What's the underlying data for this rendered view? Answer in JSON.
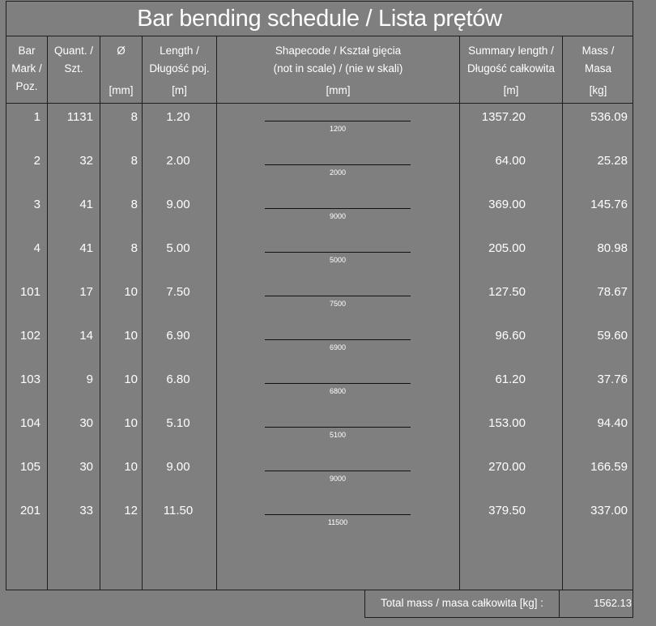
{
  "title": "Bar bending schedule / Lista prętów",
  "headers": {
    "mark": [
      "Bar",
      "Mark /",
      "Poz."
    ],
    "quant": [
      "Quant. /",
      "Szt."
    ],
    "dia": [
      "Ø"
    ],
    "length": [
      "Length /",
      "Długość poj."
    ],
    "shape": [
      "Shapecode / Kształ gięcia",
      "(not in scale) / (nie w skali)"
    ],
    "summary": [
      "Summary length /",
      "Długość całkowita"
    ],
    "mass": [
      "Mass /",
      "Masa"
    ]
  },
  "units": {
    "dia": "[mm]",
    "length": "[m]",
    "shape": "[mm]",
    "summary": "[m]",
    "mass": "[kg]"
  },
  "rows": [
    {
      "mark": "1",
      "quant": "1131",
      "dia": "8",
      "length": "1.20",
      "shape_dim": "1200",
      "summary": "1357.20",
      "mass": "536.09"
    },
    {
      "mark": "2",
      "quant": "32",
      "dia": "8",
      "length": "2.00",
      "shape_dim": "2000",
      "summary": "64.00",
      "mass": "25.28"
    },
    {
      "mark": "3",
      "quant": "41",
      "dia": "8",
      "length": "9.00",
      "shape_dim": "9000",
      "summary": "369.00",
      "mass": "145.76"
    },
    {
      "mark": "4",
      "quant": "41",
      "dia": "8",
      "length": "5.00",
      "shape_dim": "5000",
      "summary": "205.00",
      "mass": "80.98"
    },
    {
      "mark": "101",
      "quant": "17",
      "dia": "10",
      "length": "7.50",
      "shape_dim": "7500",
      "summary": "127.50",
      "mass": "78.67"
    },
    {
      "mark": "102",
      "quant": "14",
      "dia": "10",
      "length": "6.90",
      "shape_dim": "6900",
      "summary": "96.60",
      "mass": "59.60"
    },
    {
      "mark": "103",
      "quant": "9",
      "dia": "10",
      "length": "6.80",
      "shape_dim": "6800",
      "summary": "61.20",
      "mass": "37.76"
    },
    {
      "mark": "104",
      "quant": "30",
      "dia": "10",
      "length": "5.10",
      "shape_dim": "5100",
      "summary": "153.00",
      "mass": "94.40"
    },
    {
      "mark": "105",
      "quant": "30",
      "dia": "10",
      "length": "9.00",
      "shape_dim": "9000",
      "summary": "270.00",
      "mass": "166.59"
    },
    {
      "mark": "201",
      "quant": "33",
      "dia": "12",
      "length": "11.50",
      "shape_dim": "11500",
      "summary": "379.50",
      "mass": "337.00"
    }
  ],
  "total": {
    "label": "Total mass / masa całkowita [kg] :",
    "value": "1562.13"
  }
}
